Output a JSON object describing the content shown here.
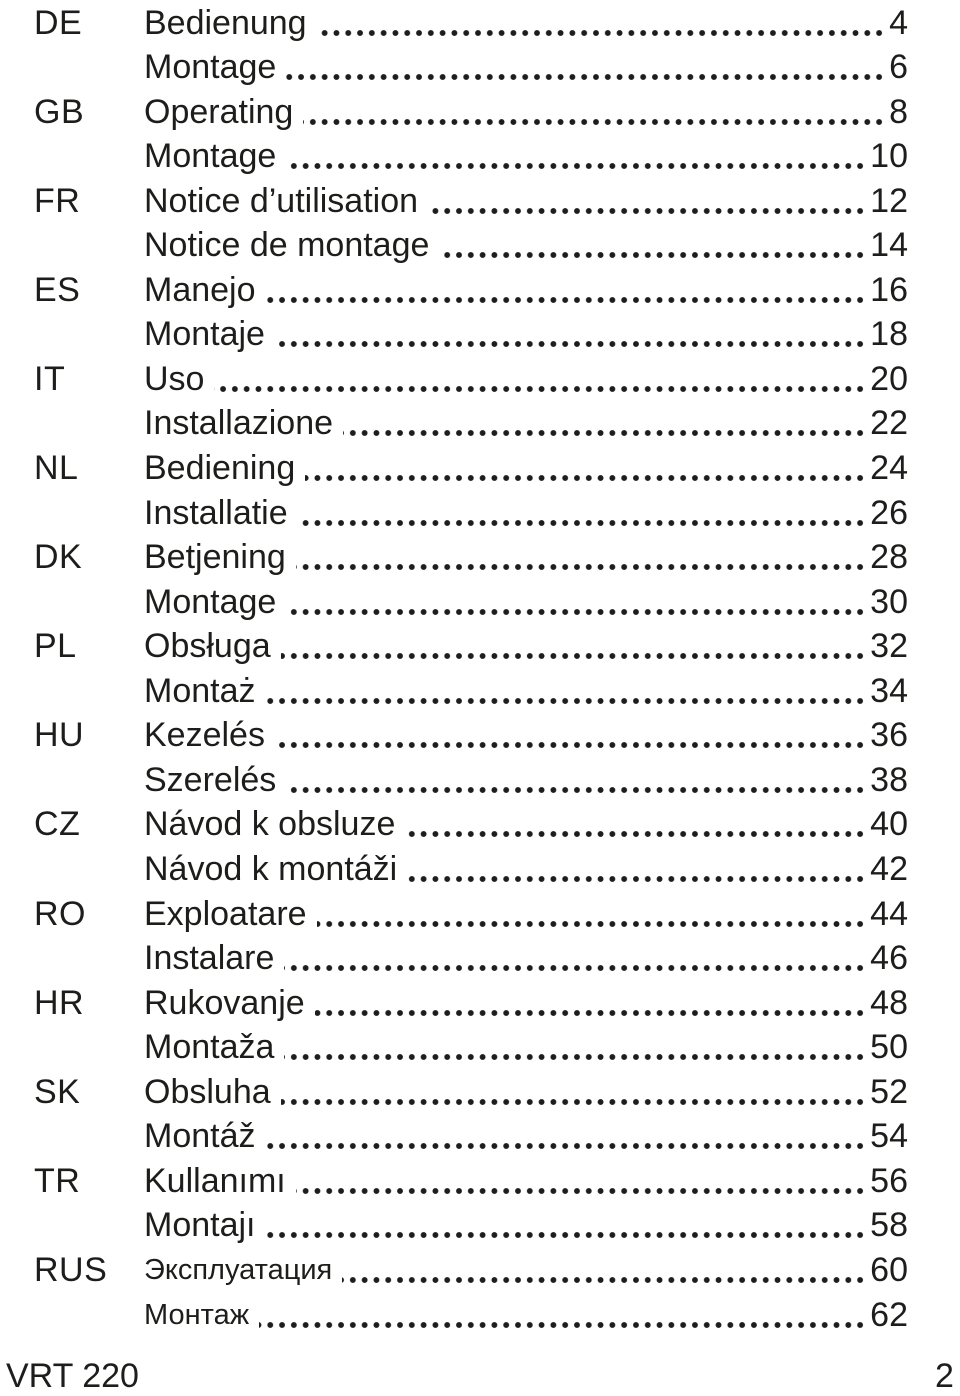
{
  "toc": {
    "entries": [
      {
        "lang": "DE",
        "title": "Bedienung",
        "page": "4"
      },
      {
        "lang": "",
        "title": "Montage",
        "page": "6"
      },
      {
        "lang": "GB",
        "title": "Operating",
        "page": "8"
      },
      {
        "lang": "",
        "title": "Montage",
        "page": "10"
      },
      {
        "lang": "FR",
        "title": "Notice d’utilisation",
        "page": "12"
      },
      {
        "lang": "",
        "title": "Notice de montage",
        "page": "14"
      },
      {
        "lang": "ES",
        "title": "Manejo",
        "page": "16"
      },
      {
        "lang": "",
        "title": "Montaje",
        "page": "18"
      },
      {
        "lang": "IT",
        "title": "Uso",
        "page": "20"
      },
      {
        "lang": "",
        "title": "Installazione",
        "page": "22"
      },
      {
        "lang": "NL",
        "title": "Bediening",
        "page": "24"
      },
      {
        "lang": "",
        "title": "Installatie",
        "page": "26"
      },
      {
        "lang": "DK",
        "title": "Betjening",
        "page": "28"
      },
      {
        "lang": "",
        "title": "Montage",
        "page": "30"
      },
      {
        "lang": "PL",
        "title": "Obsługa",
        "page": "32"
      },
      {
        "lang": "",
        "title": "Montaż",
        "page": "34"
      },
      {
        "lang": "HU",
        "title": "Kezelés",
        "page": "36"
      },
      {
        "lang": "",
        "title": "Szerelés",
        "page": "38"
      },
      {
        "lang": "CZ",
        "title": "Návod k obsluze",
        "page": "40"
      },
      {
        "lang": "",
        "title": "Návod k montáži",
        "page": "42"
      },
      {
        "lang": "RO",
        "title": "Exploatare",
        "page": "44"
      },
      {
        "lang": "",
        "title": "Instalare",
        "page": "46"
      },
      {
        "lang": "HR",
        "title": "Rukovanje",
        "page": "48"
      },
      {
        "lang": "",
        "title": "Montaža",
        "page": "50"
      },
      {
        "lang": "SK",
        "title": "Obsluha",
        "page": "52"
      },
      {
        "lang": "",
        "title": "Montáž",
        "page": "54"
      },
      {
        "lang": "TR",
        "title": "Kullanımı",
        "page": "56"
      },
      {
        "lang": "",
        "title": "Montajı",
        "page": "58"
      },
      {
        "lang": "RUS",
        "title": "Эксплуатация",
        "page": "60"
      },
      {
        "lang": "",
        "title": "Монтаж",
        "page": "62"
      }
    ]
  },
  "footer": {
    "product": "VRT 220",
    "page_number": "2"
  }
}
